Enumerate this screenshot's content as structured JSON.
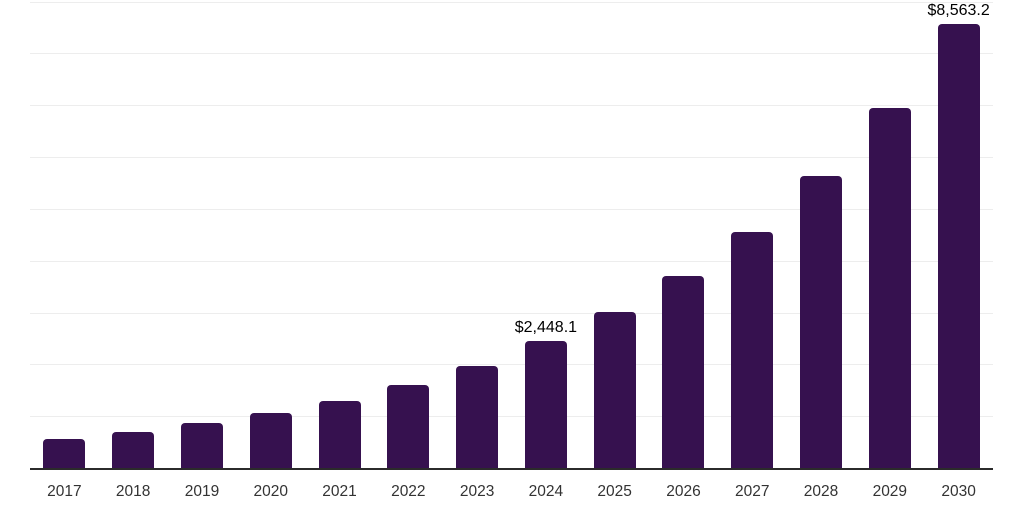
{
  "chart_data": {
    "type": "bar",
    "title": "",
    "xlabel": "",
    "ylabel": "",
    "categories": [
      "2017",
      "2018",
      "2019",
      "2020",
      "2021",
      "2022",
      "2023",
      "2024",
      "2025",
      "2026",
      "2027",
      "2028",
      "2029",
      "2030"
    ],
    "values": [
      560,
      695,
      860,
      1055,
      1285,
      1600,
      1960,
      2448.1,
      3010,
      3705,
      4545,
      5625,
      6940,
      8563.2
    ],
    "ylim": [
      0,
      9000
    ],
    "gridline_step": 1000,
    "grid": true,
    "legend": false,
    "annotations": [
      {
        "category": "2024",
        "text": "$2,448.1"
      },
      {
        "category": "2030",
        "text": "$8,563.2"
      }
    ],
    "colors": {
      "bar": "#36114F",
      "axis": "#2b2b2b",
      "gridline": "#ededed",
      "tick_label": "#333333",
      "annotation": "#000000",
      "background": "#ffffff"
    }
  }
}
